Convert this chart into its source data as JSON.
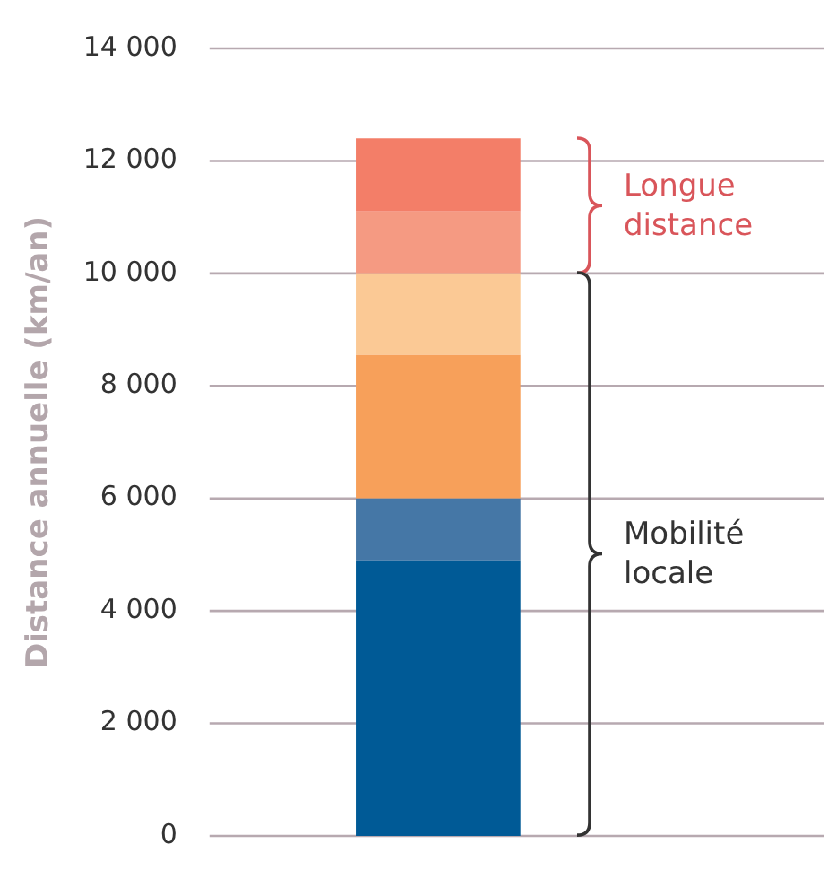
{
  "chart_data": {
    "type": "bar",
    "stacked": true,
    "categories": [
      null
    ],
    "series": [
      {
        "color": "#005a96",
        "values": [
          4900
        ]
      },
      {
        "color": "#4577a6",
        "values": [
          1100
        ]
      },
      {
        "color": "#f7a05a",
        "values": [
          2550
        ]
      },
      {
        "color": "#fbc995",
        "values": [
          1450
        ]
      },
      {
        "color": "#f59a82",
        "values": [
          1100
        ]
      },
      {
        "color": "#f37e68",
        "values": [
          1300
        ]
      }
    ],
    "ylabel": "Distance annuelle (km/an)",
    "ylim": [
      0,
      14000
    ],
    "yticks": [
      {
        "value": 0,
        "label": "0"
      },
      {
        "value": 2000,
        "label": "2 000"
      },
      {
        "value": 4000,
        "label": "4 000"
      },
      {
        "value": 6000,
        "label": "6 000"
      },
      {
        "value": 8000,
        "label": "8 000"
      },
      {
        "value": 10000,
        "label": "10 000"
      },
      {
        "value": 12000,
        "label": "12 000"
      },
      {
        "value": 14000,
        "label": "14 000"
      }
    ],
    "grid": "y",
    "tick_labels": "y",
    "legend": false,
    "annotations": [
      "Longue distance",
      "Mobilité locale"
    ]
  }
}
